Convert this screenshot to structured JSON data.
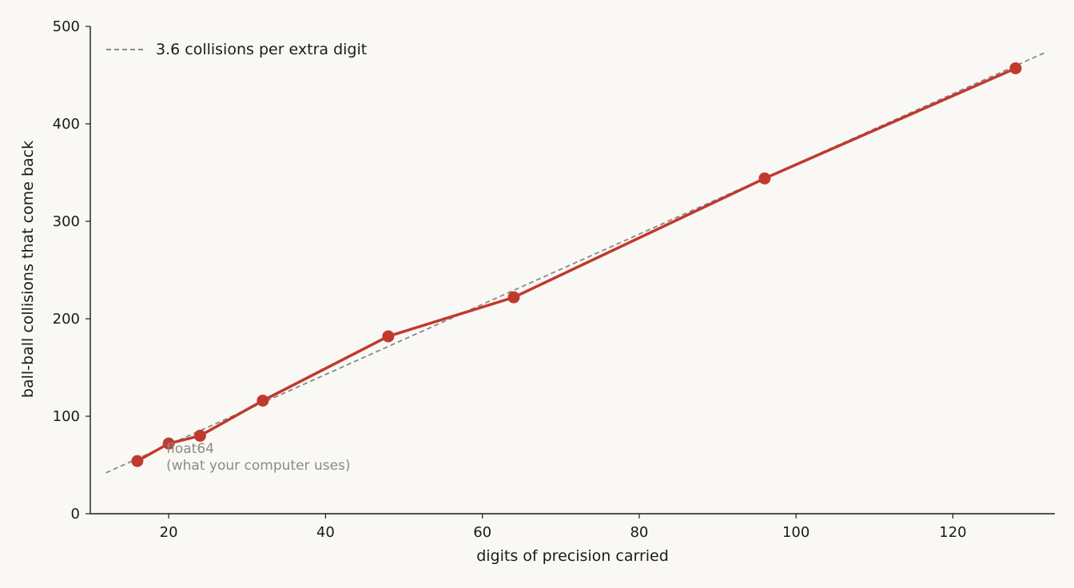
{
  "chart_data": {
    "type": "line",
    "title": "",
    "xlabel": "digits of precision carried",
    "ylabel": "ball-ball collisions that come back",
    "xlim": [
      10,
      133
    ],
    "ylim": [
      0,
      500
    ],
    "x_ticks": [
      20,
      40,
      60,
      80,
      100,
      120
    ],
    "y_ticks": [
      0,
      100,
      200,
      300,
      400,
      500
    ],
    "grid": false,
    "legend_position": "top-left",
    "series": [
      {
        "x": [
          16,
          20,
          24,
          32,
          48,
          64,
          96,
          128
        ],
        "y": [
          54,
          72,
          80,
          116,
          182,
          222,
          344,
          457
        ],
        "color": "#c0392f",
        "marker": "circle"
      }
    ],
    "reference_line": {
      "name": "3.6 collisions per extra digit",
      "slope": 3.6,
      "x": [
        12,
        132
      ],
      "y": [
        42,
        474
      ],
      "style": "dashed",
      "color": "#888885"
    },
    "annotations": [
      {
        "line1": "float64",
        "line2": "(what your computer uses)",
        "x": 20,
        "y": 72
      }
    ]
  }
}
